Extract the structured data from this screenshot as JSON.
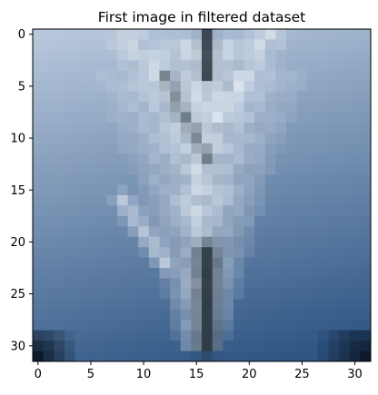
{
  "chart_data": {
    "type": "heatmap",
    "title": "First image in filtered dataset",
    "xlabel": "",
    "ylabel": "",
    "grid_size": [
      32,
      32
    ],
    "xlim": [
      -0.5,
      31.5
    ],
    "ylim": [
      31.5,
      -0.5
    ],
    "x_ticks": [
      "0",
      "5",
      "10",
      "15",
      "20",
      "25",
      "30"
    ],
    "y_ticks": [
      "0",
      "5",
      "10",
      "15",
      "20",
      "25",
      "30"
    ],
    "image_content": "blurred low-resolution photo of a pale grey-white airplane seen from below against a blue sky",
    "colors": {
      "sky_top": "#b8c8dc",
      "sky_bottom": "#2f5685",
      "plane_light": "#e8eef6",
      "plane_mid": "#a9b6c6",
      "plane_dark": "#1f2a33",
      "corner_dark": "#0d1a2c"
    }
  }
}
